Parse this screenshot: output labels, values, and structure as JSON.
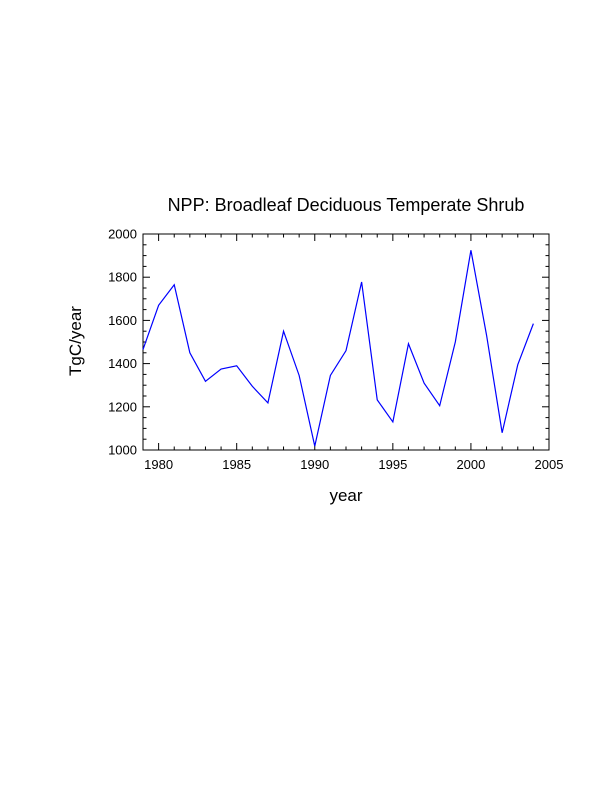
{
  "chart_data": {
    "type": "line",
    "title": "NPP: Broadleaf Deciduous Temperate Shrub",
    "xlabel": "year",
    "ylabel": "TgC/year",
    "xlim": [
      1979,
      2005
    ],
    "ylim": [
      1000,
      2000
    ],
    "xticks": [
      1980,
      1985,
      1990,
      1995,
      2000,
      2005
    ],
    "yticks": [
      1000,
      1200,
      1400,
      1600,
      1800,
      2000
    ],
    "grid": false,
    "line_color": "#0000ff",
    "x": [
      1979,
      1980,
      1981,
      1982,
      1983,
      1984,
      1985,
      1986,
      1987,
      1988,
      1989,
      1990,
      1991,
      1992,
      1993,
      1994,
      1995,
      1996,
      1997,
      1998,
      1999,
      2000,
      2001,
      2002,
      2003,
      2004
    ],
    "series": [
      {
        "values": [
          1465,
          1670,
          1765,
          1450,
          1318,
          1375,
          1390,
          1295,
          1218,
          1550,
          1345,
          1018,
          1345,
          1460,
          1778,
          1232,
          1130,
          1492,
          1310,
          1205,
          1500,
          1925,
          1532,
          1080,
          1395,
          1585
        ]
      }
    ]
  }
}
